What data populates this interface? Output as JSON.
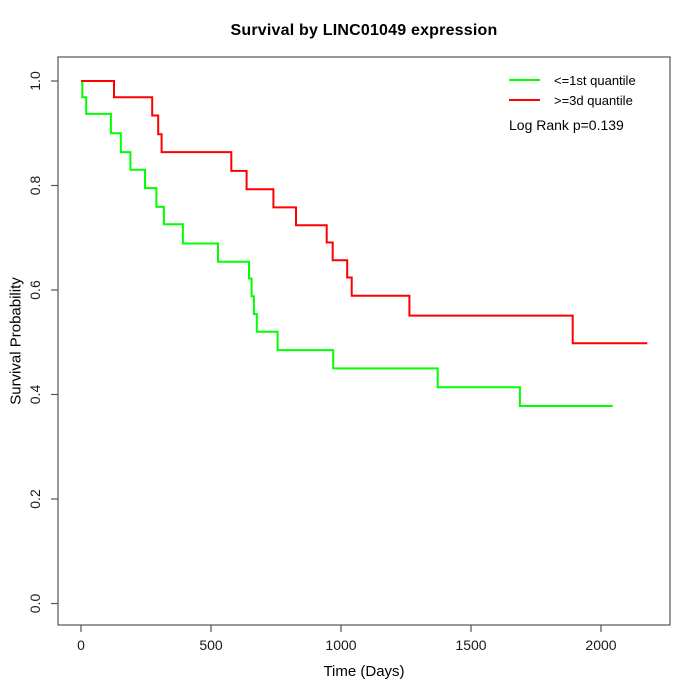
{
  "title": "Survival by LINC01049 expression",
  "legend": {
    "items": [
      {
        "label": "<=1st quantile",
        "color": "#00ff00"
      },
      {
        "label": ">=3d quantile",
        "color": "#ff0000"
      }
    ],
    "annotation": "Log Rank p=0.139"
  },
  "chart_data": {
    "type": "line",
    "subtype": "kaplan-meier-step",
    "title": "Survival by LINC01049 expression",
    "xlabel": "Time (Days)",
    "ylabel": "Survival Probability",
    "xlim": [
      0,
      2265
    ],
    "ylim": [
      0.0,
      1.0
    ],
    "x_ticks": [
      0,
      500,
      1000,
      1500,
      2000
    ],
    "y_ticks": [
      0.0,
      0.2,
      0.4,
      0.6,
      0.8,
      1.0
    ],
    "grid": false,
    "legend_position": "top-right",
    "annotation": "Log Rank p=0.139",
    "series": [
      {
        "name": "<=1st quantile",
        "color": "#00ff00",
        "steps": [
          [
            0,
            1.0
          ],
          [
            5,
            0.969
          ],
          [
            20,
            0.937
          ],
          [
            115,
            0.9
          ],
          [
            153,
            0.864
          ],
          [
            190,
            0.83
          ],
          [
            246,
            0.795
          ],
          [
            290,
            0.759
          ],
          [
            319,
            0.726
          ],
          [
            392,
            0.689
          ],
          [
            527,
            0.654
          ],
          [
            646,
            0.622
          ],
          [
            656,
            0.588
          ],
          [
            665,
            0.554
          ],
          [
            676,
            0.52
          ],
          [
            756,
            0.485
          ],
          [
            970,
            0.45
          ],
          [
            1372,
            0.414
          ],
          [
            1688,
            0.378
          ]
        ],
        "end_time": 2045
      },
      {
        "name": ">=3d quantile",
        "color": "#ff0000",
        "steps": [
          [
            0,
            1.0
          ],
          [
            127,
            0.969
          ],
          [
            274,
            0.934
          ],
          [
            297,
            0.898
          ],
          [
            310,
            0.864
          ],
          [
            578,
            0.828
          ],
          [
            637,
            0.793
          ],
          [
            740,
            0.758
          ],
          [
            827,
            0.724
          ],
          [
            945,
            0.691
          ],
          [
            968,
            0.657
          ],
          [
            1024,
            0.624
          ],
          [
            1041,
            0.589
          ],
          [
            1263,
            0.551
          ],
          [
            1891,
            0.498
          ]
        ],
        "end_time": 2178
      }
    ]
  }
}
